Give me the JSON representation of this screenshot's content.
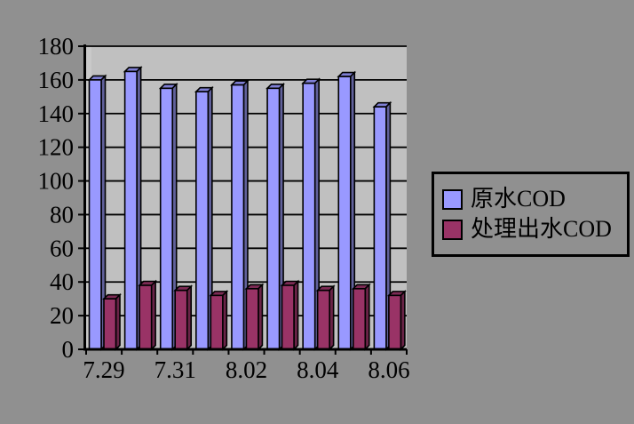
{
  "chart_data": {
    "type": "bar",
    "style": "3d-clustered-column",
    "title": "",
    "xlabel": "",
    "ylabel": "",
    "categories": [
      "7.29",
      "7.30",
      "7.31",
      "8.01",
      "8.02",
      "8.03",
      "8.04",
      "8.05",
      "8.06"
    ],
    "x_label_interval": 2,
    "x_labels_visible": [
      "7.29",
      "7.31",
      "8.02",
      "8.04",
      "8.06"
    ],
    "series": [
      {
        "name": "原水COD",
        "values": [
          160,
          165,
          155,
          153,
          157,
          155,
          158,
          162,
          144
        ],
        "color": "#9999FF",
        "top_color": "#7F7FD4",
        "side_color": "#61619B"
      },
      {
        "name": "处理出水COD",
        "values": [
          30,
          38,
          35,
          32,
          36,
          38,
          35,
          36,
          32
        ],
        "color": "#993366",
        "top_color": "#7D2A54",
        "side_color": "#6A2347"
      }
    ],
    "ylim": [
      0,
      180
    ],
    "ytick_step": 20,
    "yticks": [
      0,
      20,
      40,
      60,
      80,
      100,
      120,
      140,
      160,
      180
    ],
    "grid": true,
    "legend_position": "right",
    "colors": {
      "outer_background": "#909090",
      "plot_background": "#C0C0C0",
      "wall_strip": "#C9C9C9",
      "gridline": "#000000",
      "axis": "#000000",
      "text": "#000000"
    }
  }
}
